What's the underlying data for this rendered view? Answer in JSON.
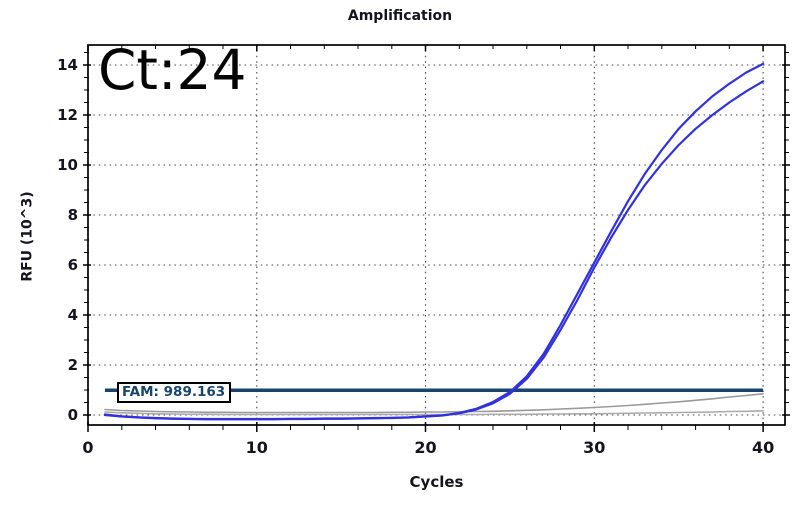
{
  "window": {
    "background": "#ffffff"
  },
  "chart_data": {
    "type": "line",
    "title": "Amplification",
    "xlabel": "Cycles",
    "ylabel": "RFU (10^3)",
    "annotation": "Ct:24",
    "grid": "dotted",
    "legend_position": "none",
    "xlim": [
      0,
      41.3
    ],
    "ylim": [
      -0.4,
      14.8
    ],
    "x_ticks_major": [
      0,
      10,
      20,
      30,
      40
    ],
    "y_ticks_major": [
      0,
      2,
      4,
      6,
      8,
      10,
      12,
      14
    ],
    "x_minor_step": 2,
    "y_minor_step": 0.5,
    "threshold": {
      "label": "FAM: 989.163",
      "value_rfu": 989.163,
      "color": "#17456e",
      "x_start": 1,
      "x_end": 40
    },
    "x": [
      1,
      2,
      3,
      4,
      5,
      6,
      7,
      8,
      9,
      10,
      11,
      12,
      13,
      14,
      15,
      16,
      17,
      18,
      19,
      20,
      21,
      22,
      23,
      24,
      25,
      26,
      27,
      28,
      29,
      30,
      31,
      32,
      33,
      34,
      35,
      36,
      37,
      38,
      39,
      40
    ],
    "series": [
      {
        "name": "gray-2",
        "color": "#ababab",
        "width": 1.6,
        "values": [
          0.12,
          0.09,
          0.07,
          0.05,
          0.04,
          0.03,
          0.03,
          0.02,
          0.02,
          0.02,
          0.02,
          0.02,
          0.02,
          0.02,
          0.02,
          0.02,
          0.02,
          0.02,
          0.02,
          0.02,
          0.02,
          0.02,
          0.02,
          0.03,
          0.03,
          0.03,
          0.04,
          0.04,
          0.05,
          0.05,
          0.06,
          0.07,
          0.08,
          0.09,
          0.1,
          0.11,
          0.12,
          0.14,
          0.15,
          0.17
        ]
      },
      {
        "name": "gray-1",
        "color": "#9a9a9a",
        "width": 1.6,
        "values": [
          0.22,
          0.18,
          0.16,
          0.14,
          0.13,
          0.12,
          0.11,
          0.11,
          0.1,
          0.1,
          0.1,
          0.1,
          0.1,
          0.1,
          0.1,
          0.1,
          0.1,
          0.11,
          0.11,
          0.12,
          0.12,
          0.13,
          0.14,
          0.15,
          0.17,
          0.19,
          0.21,
          0.24,
          0.27,
          0.3,
          0.34,
          0.38,
          0.43,
          0.48,
          0.53,
          0.59,
          0.65,
          0.72,
          0.78,
          0.85
        ]
      },
      {
        "name": "blue-2",
        "color": "#3232dd",
        "width": 2.2,
        "values": [
          0.02,
          -0.05,
          -0.09,
          -0.12,
          -0.14,
          -0.15,
          -0.16,
          -0.16,
          -0.16,
          -0.16,
          -0.16,
          -0.15,
          -0.15,
          -0.14,
          -0.14,
          -0.13,
          -0.12,
          -0.11,
          -0.09,
          -0.05,
          -0.01,
          0.07,
          0.22,
          0.47,
          0.85,
          1.45,
          2.3,
          3.4,
          4.6,
          5.9,
          7.1,
          8.2,
          9.2,
          10.05,
          10.8,
          11.45,
          12.0,
          12.5,
          12.95,
          13.35
        ]
      },
      {
        "name": "blue-1",
        "color": "#3232dd",
        "width": 2.2,
        "values": [
          0.0,
          -0.06,
          -0.1,
          -0.13,
          -0.15,
          -0.16,
          -0.17,
          -0.17,
          -0.17,
          -0.17,
          -0.17,
          -0.16,
          -0.16,
          -0.15,
          -0.15,
          -0.14,
          -0.13,
          -0.12,
          -0.1,
          -0.06,
          -0.02,
          0.08,
          0.25,
          0.52,
          0.92,
          1.55,
          2.45,
          3.6,
          4.85,
          6.1,
          7.35,
          8.55,
          9.65,
          10.6,
          11.45,
          12.15,
          12.75,
          13.25,
          13.7,
          14.05
        ]
      }
    ],
    "colors": {
      "axis": "#000000",
      "grid_dots": "#454545",
      "text": "#15151f"
    }
  }
}
